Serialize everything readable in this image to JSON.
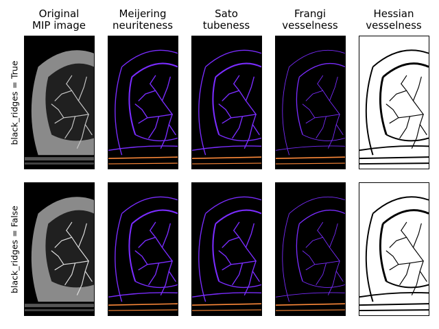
{
  "columns": [
    {
      "key": "original",
      "title": "Original\nMIP image"
    },
    {
      "key": "meijering",
      "title": "Meijering\nneuriteness"
    },
    {
      "key": "sato",
      "title": "Sato\ntubeness"
    },
    {
      "key": "frangi",
      "title": "Frangi\nvesselness"
    },
    {
      "key": "hessian",
      "title": "Hessian\nvesselness"
    }
  ],
  "rows": [
    {
      "label": "black_ridges = True"
    },
    {
      "label": "black_ridges = False"
    }
  ],
  "colors": {
    "original_bg": "#000000",
    "original_tissue": "#8a8a8a",
    "filter_bg": "#000000",
    "filter_purple": "#7a2cff",
    "filter_orange": "#ff8a3a",
    "hessian_bg": "#ffffff",
    "hessian_line": "#000000"
  }
}
